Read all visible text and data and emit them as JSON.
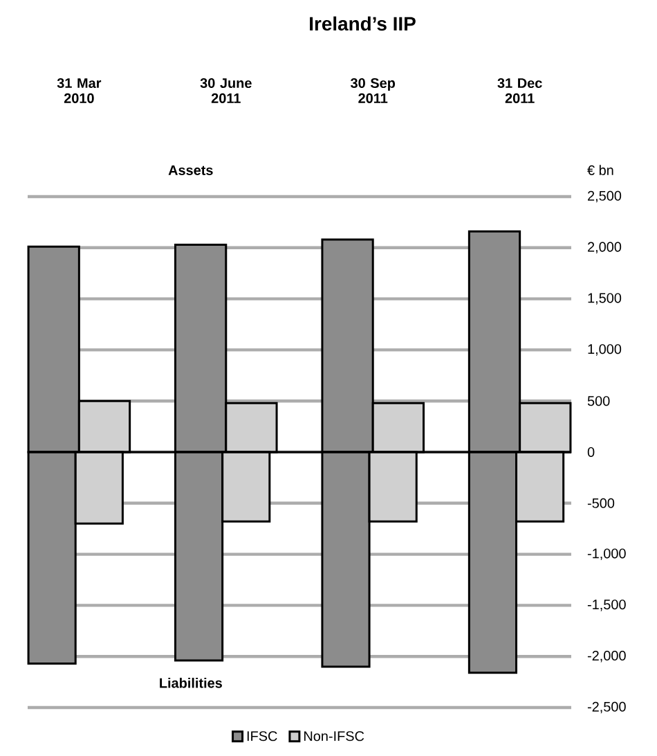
{
  "chart_data": {
    "type": "bar",
    "title": "Ireland’s IIP",
    "ylabel": "€ bn",
    "categories": [
      "31 Mar 2010",
      "30 June 2011",
      "30 Sep 2011",
      "31 Dec 2011"
    ],
    "series": [
      {
        "name": "IFSC",
        "color": "#8c8c8c",
        "values": [
          2010,
          2030,
          2080,
          2160
        ]
      },
      {
        "color": "#8c8c8c",
        "values": [
          -2070,
          -2040,
          -2100,
          -2160
        ]
      },
      {
        "name": "Non-IFSC",
        "color": "#d0d0d0",
        "values": [
          500,
          480,
          480,
          480
        ]
      },
      {
        "color": "#d0d0d0",
        "values": [
          -700,
          -680,
          -680,
          -680
        ]
      }
    ],
    "ylim": [
      -2500,
      2500
    ],
    "yticks": [
      {
        "value": -2500,
        "label": "-2,500"
      },
      {
        "value": -2000,
        "label": "-2,000"
      },
      {
        "value": -1500,
        "label": "-1,500"
      },
      {
        "value": -1000,
        "label": "-1,000"
      },
      -500,
      0,
      500,
      {
        "value": 1000,
        "label": "1,000"
      },
      {
        "value": 1500,
        "label": "1,500"
      },
      {
        "value": 2000,
        "label": "2,000"
      },
      {
        "value": 2500,
        "label": "2,500"
      }
    ],
    "annotations": [
      "Assets",
      "Liabilities"
    ],
    "grid": "y",
    "legend": "bottom"
  }
}
